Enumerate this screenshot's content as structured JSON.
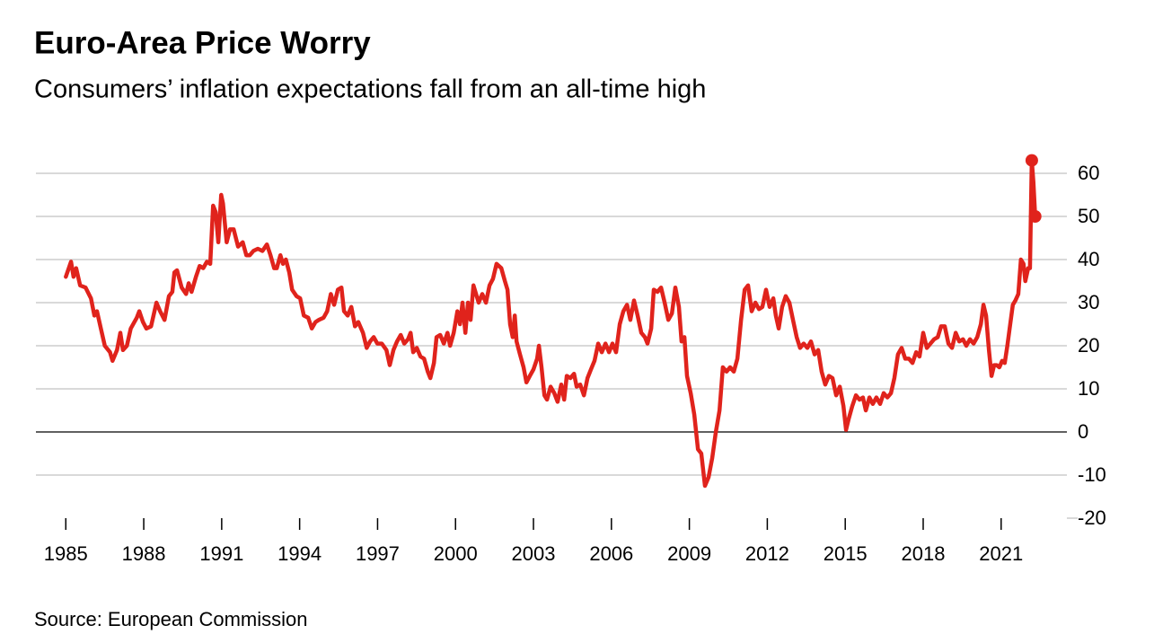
{
  "chart_data": {
    "type": "line",
    "title": "Euro-Area Price Worry",
    "subtitle": "Consumers’ inflation expectations fall from an all-time high",
    "source": "Source: European Commission",
    "x": [
      1985.0,
      1985.2,
      1985.3,
      1985.4,
      1985.55,
      1985.76,
      1985.97,
      1986.1,
      1986.2,
      1986.35,
      1986.5,
      1986.7,
      1986.8,
      1986.97,
      1987.1,
      1987.2,
      1987.35,
      1987.5,
      1987.73,
      1987.83,
      1987.97,
      1988.1,
      1988.28,
      1988.49,
      1988.63,
      1988.8,
      1988.97,
      1989.1,
      1989.18,
      1989.28,
      1989.46,
      1989.63,
      1989.73,
      1989.84,
      1990.01,
      1990.15,
      1990.29,
      1990.43,
      1990.56,
      1990.67,
      1990.77,
      1990.87,
      1990.98,
      1991.05,
      1991.19,
      1991.32,
      1991.46,
      1991.63,
      1991.81,
      1991.95,
      1992.08,
      1992.22,
      1992.39,
      1992.57,
      1992.74,
      1992.88,
      1993.02,
      1993.12,
      1993.26,
      1993.36,
      1993.47,
      1993.6,
      1993.71,
      1993.88,
      1994.02,
      1994.16,
      1994.33,
      1994.47,
      1994.61,
      1994.74,
      1994.92,
      1995.06,
      1995.2,
      1995.33,
      1995.47,
      1995.61,
      1995.71,
      1995.85,
      1995.99,
      1996.13,
      1996.26,
      1996.44,
      1996.58,
      1996.71,
      1996.85,
      1996.99,
      1997.16,
      1997.34,
      1997.47,
      1997.61,
      1997.75,
      1997.89,
      1998.03,
      1998.17,
      1998.27,
      1998.37,
      1998.51,
      1998.65,
      1998.79,
      1998.93,
      1999.03,
      1999.17,
      1999.27,
      1999.41,
      1999.55,
      1999.69,
      1999.79,
      1999.93,
      2000.07,
      2000.17,
      2000.27,
      2000.38,
      2000.48,
      2000.58,
      2000.69,
      2000.79,
      2000.89,
      2001.03,
      2001.17,
      2001.31,
      2001.44,
      2001.58,
      2001.76,
      2001.9,
      2002.0,
      2002.1,
      2002.2,
      2002.28,
      2002.35,
      2002.48,
      2002.62,
      2002.73,
      2002.86,
      2003.0,
      2003.14,
      2003.21,
      2003.31,
      2003.42,
      2003.52,
      2003.66,
      2003.8,
      2003.93,
      2004.07,
      2004.18,
      2004.28,
      2004.42,
      2004.56,
      2004.66,
      2004.8,
      2004.94,
      2005.08,
      2005.21,
      2005.35,
      2005.49,
      2005.63,
      2005.77,
      2005.91,
      2006.04,
      2006.18,
      2006.32,
      2006.46,
      2006.6,
      2006.73,
      2006.87,
      2007.01,
      2007.15,
      2007.29,
      2007.39,
      2007.53,
      2007.63,
      2007.77,
      2007.91,
      2008.05,
      2008.19,
      2008.33,
      2008.46,
      2008.6,
      2008.7,
      2008.81,
      2008.91,
      2009.05,
      2009.19,
      2009.33,
      2009.46,
      2009.6,
      2009.74,
      2009.88,
      2010.02,
      2010.16,
      2010.29,
      2010.43,
      2010.57,
      2010.71,
      2010.85,
      2010.99,
      2011.13,
      2011.26,
      2011.4,
      2011.54,
      2011.68,
      2011.81,
      2011.95,
      2012.09,
      2012.23,
      2012.33,
      2012.44,
      2012.57,
      2012.71,
      2012.85,
      2012.99,
      2013.13,
      2013.26,
      2013.4,
      2013.54,
      2013.68,
      2013.82,
      2013.96,
      2014.09,
      2014.23,
      2014.37,
      2014.51,
      2014.65,
      2014.79,
      2014.93,
      2015.03,
      2015.13,
      2015.27,
      2015.41,
      2015.55,
      2015.68,
      2015.79,
      2015.93,
      2016.06,
      2016.2,
      2016.34,
      2016.48,
      2016.62,
      2016.76,
      2016.89,
      2017.03,
      2017.17,
      2017.31,
      2017.45,
      2017.59,
      2017.73,
      2017.86,
      2018.0,
      2018.14,
      2018.28,
      2018.42,
      2018.56,
      2018.69,
      2018.83,
      2018.97,
      2019.11,
      2019.25,
      2019.39,
      2019.53,
      2019.66,
      2019.8,
      2019.94,
      2020.08,
      2020.22,
      2020.32,
      2020.42,
      2020.53,
      2020.63,
      2020.73,
      2020.83,
      2020.93,
      2021.04,
      2021.14,
      2021.24,
      2021.35,
      2021.45,
      2021.55,
      2021.66,
      2021.76,
      2021.86,
      2021.93,
      2022.04,
      2022.11,
      2022.18,
      2022.24,
      2022.31
    ],
    "series": [
      {
        "name": "Inflation expectations",
        "color": "#e0231c",
        "values": [
          36,
          39.5,
          36,
          38,
          34,
          33.5,
          31,
          27,
          28,
          24,
          20,
          18.5,
          16.5,
          19,
          23,
          19,
          20,
          24,
          26.5,
          28,
          25.5,
          24,
          24.5,
          30,
          28,
          26,
          31.5,
          32.5,
          37,
          37.5,
          33.5,
          32,
          34.5,
          32.5,
          36,
          38.5,
          38,
          39.5,
          39,
          52.5,
          51,
          44,
          55,
          53,
          44,
          47,
          47,
          43,
          44,
          41,
          41,
          42,
          42.5,
          42,
          43.5,
          41,
          38,
          38,
          41,
          39,
          40,
          37,
          33,
          31.5,
          31,
          27,
          26.5,
          24,
          25.5,
          26,
          26.5,
          28,
          32,
          29.5,
          33,
          33.5,
          28,
          27,
          29,
          24.5,
          25.5,
          23,
          19.5,
          21,
          22,
          20.5,
          20.5,
          19,
          15.5,
          19,
          21,
          22.5,
          20.5,
          21.5,
          23,
          18.5,
          19.5,
          17.5,
          17,
          14,
          12.5,
          16,
          22,
          22.5,
          20.5,
          23,
          20,
          23,
          28,
          25,
          30,
          23,
          30,
          26,
          34,
          32,
          30,
          32,
          30,
          34,
          35.5,
          39,
          38,
          35,
          33,
          25,
          22,
          27,
          21,
          18,
          15,
          11.5,
          13,
          14.5,
          17,
          20,
          15,
          8.5,
          7.5,
          10.5,
          9,
          7,
          11,
          7.5,
          13,
          12.5,
          13.5,
          10.5,
          11,
          8.5,
          12.5,
          14.5,
          16.5,
          20.5,
          18.5,
          20.5,
          18.5,
          20.5,
          18.5,
          25,
          28,
          29.5,
          26,
          30.5,
          27,
          23,
          22,
          20.5,
          24,
          33,
          32.5,
          33.5,
          30,
          26,
          27.5,
          33.5,
          29,
          21,
          22,
          13,
          9,
          4,
          -4,
          -5,
          -12.5,
          -10.5,
          -6,
          0,
          5,
          15,
          14,
          15,
          14,
          17,
          26,
          33,
          34,
          28,
          30,
          28.5,
          29,
          33,
          29,
          31,
          27,
          24,
          29,
          31.5,
          30,
          26,
          22,
          19.5,
          20.5,
          19.5,
          21,
          18,
          19,
          14,
          11,
          13,
          12.5,
          8.5,
          10.5,
          6,
          0.5,
          3,
          6,
          8.5,
          7.5,
          8,
          5,
          8,
          6.5,
          8,
          6.5,
          9,
          8,
          9,
          12.5,
          18,
          19.5,
          17,
          17,
          16,
          18.5,
          17.5,
          23,
          19.5,
          20.5,
          21.5,
          22,
          24.5,
          24.5,
          20.5,
          19.5,
          23,
          21,
          21.5,
          20,
          21.5,
          20.5,
          22,
          25,
          29.5,
          27,
          19,
          13,
          15.5,
          15.5,
          15,
          16.5,
          16,
          20,
          25,
          29.5,
          30.5,
          32,
          40,
          39,
          35,
          38,
          38,
          63,
          58,
          50
        ]
      }
    ],
    "xlim": [
      1983.85,
      2023.6
    ],
    "xticks": [
      1985,
      1988,
      1991,
      1994,
      1997,
      2000,
      2003,
      2006,
      2009,
      2012,
      2015,
      2018,
      2021
    ],
    "ylim": [
      -20,
      65
    ],
    "yticks": [
      -20,
      -10,
      0,
      10,
      20,
      30,
      40,
      50,
      60
    ],
    "grid": true
  }
}
